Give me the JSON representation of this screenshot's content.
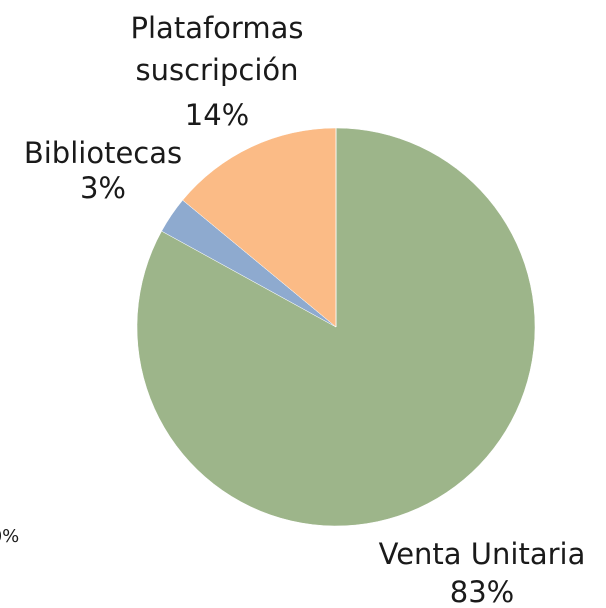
{
  "chart_data": {
    "type": "pie",
    "categories": [
      "Venta Unitaria",
      "Bibliotecas",
      "Plataformas suscripción",
      null
    ],
    "values": [
      83,
      3,
      14,
      0
    ],
    "value_labels": [
      "83%",
      "3%",
      "14%",
      "0%"
    ],
    "colors": [
      "#9db58a",
      "#8eaacf",
      "#fbbb86",
      "#c9c9c9"
    ]
  }
}
